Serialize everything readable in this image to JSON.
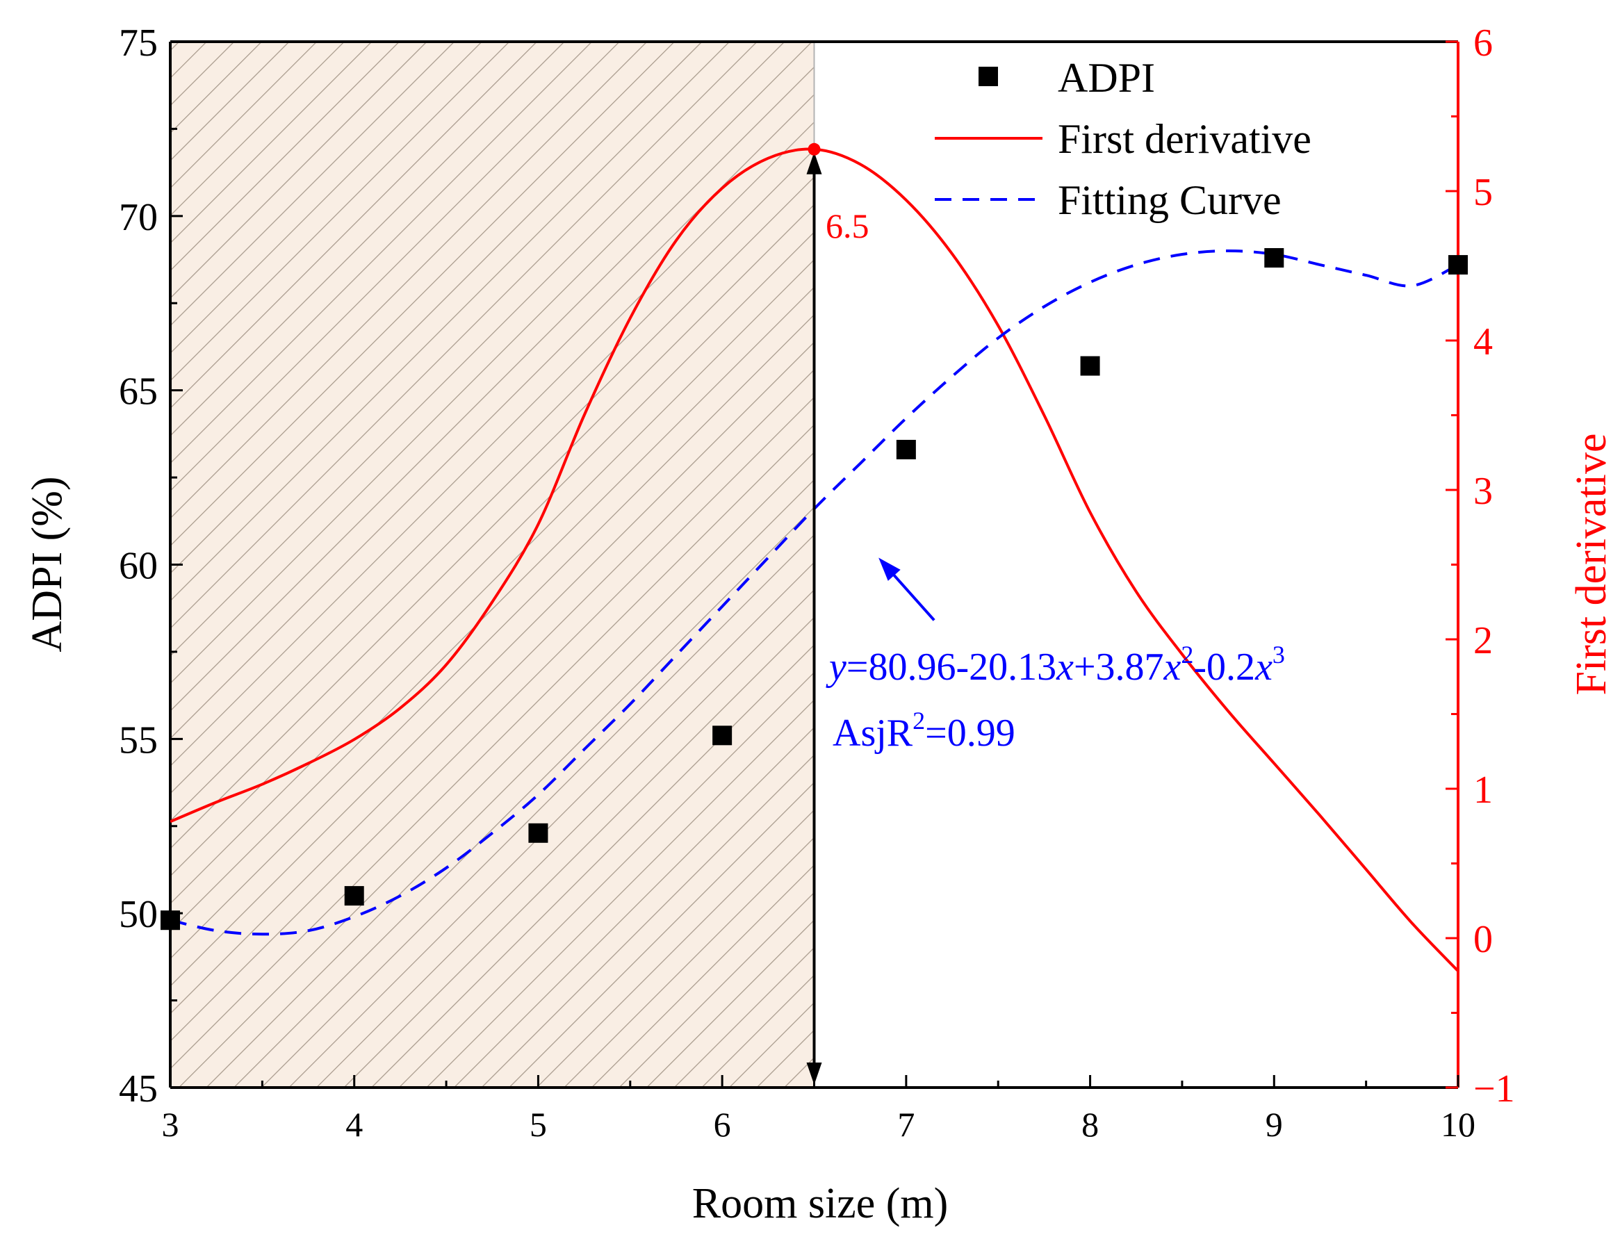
{
  "chart_data": {
    "type": "scatter",
    "x_axis": {
      "label": "Room size (m)",
      "range": [
        3,
        10
      ],
      "ticks": [
        3,
        4,
        5,
        6,
        7,
        8,
        9,
        10
      ],
      "tick_labels": [
        "3",
        "4",
        "5",
        "6",
        "7",
        "8",
        "9",
        "10"
      ]
    },
    "y_left_axis": {
      "label": "ADPI (%)",
      "range": [
        45,
        75
      ],
      "ticks": [
        45,
        50,
        55,
        60,
        65,
        70,
        75
      ],
      "tick_labels": [
        "45",
        "50",
        "55",
        "60",
        "65",
        "70",
        "75"
      ]
    },
    "y_right_axis": {
      "label": "First derivative",
      "range": [
        -1,
        6
      ],
      "ticks": [
        -1,
        0,
        1,
        2,
        3,
        4,
        5,
        6
      ],
      "tick_labels": [
        "−1",
        "0",
        "1",
        "2",
        "3",
        "4",
        "5",
        "6"
      ],
      "color": "#ff0000"
    },
    "series": [
      {
        "name": "ADPI",
        "kind": "scatter",
        "axis": "left",
        "color": "#000000",
        "x": [
          3,
          4,
          5,
          6,
          7,
          8,
          9,
          10
        ],
        "y": [
          49.8,
          50.5,
          52.3,
          55.1,
          63.3,
          65.7,
          68.8,
          68.6
        ]
      },
      {
        "name": "First derivative",
        "kind": "line",
        "axis": "right",
        "color": "#ff0000",
        "x": [
          3.0,
          3.25,
          3.5,
          3.75,
          4.0,
          4.25,
          4.5,
          4.75,
          5.0,
          5.25,
          5.5,
          5.75,
          6.0,
          6.25,
          6.5,
          6.75,
          7.0,
          7.25,
          7.5,
          7.75,
          8.0,
          8.25,
          8.5,
          8.75,
          9.0,
          9.25,
          9.5,
          9.75,
          10.0
        ],
        "y": [
          0.78,
          0.91,
          1.03,
          1.17,
          1.33,
          1.54,
          1.83,
          2.25,
          2.77,
          3.5,
          4.15,
          4.67,
          5.02,
          5.22,
          5.28,
          5.18,
          4.94,
          4.58,
          4.1,
          3.5,
          2.85,
          2.32,
          1.9,
          1.52,
          1.17,
          0.82,
          0.46,
          0.1,
          -0.22
        ]
      },
      {
        "name": "Fitting Curve",
        "kind": "line",
        "style": "dashed",
        "axis": "left",
        "color": "#0000ff",
        "x": [
          3.0,
          3.25,
          3.5,
          3.75,
          4.0,
          4.25,
          4.5,
          4.75,
          5.0,
          5.25,
          5.5,
          5.75,
          6.0,
          6.25,
          6.5,
          6.75,
          7.0,
          7.25,
          7.5,
          7.75,
          8.0,
          8.25,
          8.5,
          8.75,
          9.0,
          9.25,
          9.5,
          9.75,
          10.0
        ],
        "y": [
          49.8,
          49.5,
          49.4,
          49.5,
          49.9,
          50.5,
          51.3,
          52.3,
          53.4,
          54.7,
          56.0,
          57.4,
          58.8,
          60.2,
          61.6,
          62.9,
          64.2,
          65.4,
          66.5,
          67.4,
          68.1,
          68.6,
          68.9,
          69.0,
          68.9,
          68.6,
          68.3,
          68.0,
          68.6
        ]
      }
    ],
    "shaded_region": {
      "x_from": 3,
      "x_to": 6.5,
      "pattern": "diagonal-hatch",
      "fill": "#f9eee4"
    },
    "annotations": {
      "peak_label": "6.5",
      "peak_x": 6.5,
      "peak_y_right": 5.28,
      "equation_parts": [
        "y",
        "=80.96-20.13",
        "x",
        "+3.87",
        "x",
        "2",
        "-0.2",
        "x",
        "3"
      ],
      "r2_parts": [
        "AsjR",
        "2",
        "=0.99"
      ],
      "equation_color": "#0000ff",
      "arrow_target_x": 6.85,
      "arrow_target_y": 60.2
    },
    "legend": {
      "position": "top-right",
      "entries": [
        "ADPI",
        "First derivative",
        "Fitting Curve"
      ]
    }
  }
}
